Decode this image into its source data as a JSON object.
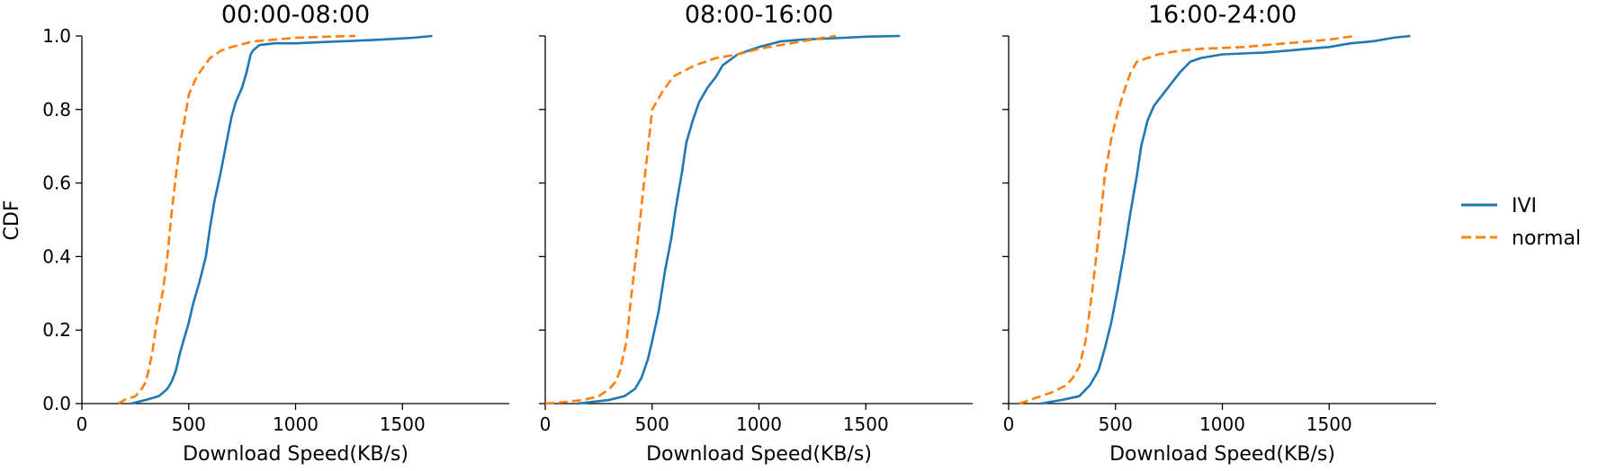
{
  "figure": {
    "ylabel": "CDF",
    "xlabel": "Download Speed(KB/s)"
  },
  "legend": {
    "placement": "right",
    "entries": [
      {
        "label": "IVI",
        "color": "#1f77b4",
        "style": "solid"
      },
      {
        "label": "normal",
        "color": "#ff7f0e",
        "style": "dashed"
      }
    ]
  },
  "chart_data": [
    {
      "type": "line",
      "title": "00:00-08:00",
      "xlabel": "Download Speed(KB/s)",
      "ylabel": "CDF",
      "xlim": [
        0,
        2000
      ],
      "ylim": [
        0,
        1
      ],
      "xticks": [
        "0",
        "500",
        "1000",
        "1500"
      ],
      "yticks": [
        "0.0",
        "0.2",
        "0.4",
        "0.6",
        "0.8",
        "1.0"
      ],
      "grid": false,
      "series": [
        {
          "name": "IVI",
          "color": "#1f77b4",
          "style": "solid",
          "x": [
            230,
            300,
            360,
            400,
            420,
            440,
            460,
            480,
            500,
            520,
            550,
            580,
            600,
            620,
            650,
            680,
            700,
            720,
            750,
            770,
            790,
            800,
            830,
            900,
            1000,
            1200,
            1400,
            1550,
            1640
          ],
          "y": [
            0.0,
            0.01,
            0.02,
            0.04,
            0.06,
            0.09,
            0.14,
            0.18,
            0.22,
            0.27,
            0.33,
            0.4,
            0.48,
            0.55,
            0.63,
            0.72,
            0.78,
            0.82,
            0.86,
            0.9,
            0.95,
            0.96,
            0.975,
            0.98,
            0.98,
            0.985,
            0.99,
            0.995,
            1.0
          ]
        },
        {
          "name": "normal",
          "color": "#ff7f0e",
          "style": "dashed",
          "x": [
            170,
            200,
            250,
            280,
            300,
            330,
            350,
            380,
            400,
            420,
            440,
            460,
            480,
            500,
            530,
            550,
            600,
            650,
            700,
            800,
            900,
            1000,
            1100,
            1200,
            1280
          ],
          "y": [
            0.0,
            0.01,
            0.02,
            0.04,
            0.06,
            0.14,
            0.22,
            0.31,
            0.4,
            0.52,
            0.62,
            0.71,
            0.77,
            0.84,
            0.88,
            0.9,
            0.94,
            0.96,
            0.97,
            0.985,
            0.99,
            0.995,
            0.997,
            0.999,
            1.0
          ]
        }
      ]
    },
    {
      "type": "line",
      "title": "08:00-16:00",
      "xlabel": "Download Speed(KB/s)",
      "ylabel": "CDF",
      "xlim": [
        0,
        2000
      ],
      "ylim": [
        0,
        1
      ],
      "xticks": [
        "0",
        "500",
        "1000",
        "1500"
      ],
      "yticks": [
        "0.0",
        "0.2",
        "0.4",
        "0.6",
        "0.8",
        "1.0"
      ],
      "grid": false,
      "series": [
        {
          "name": "IVI",
          "color": "#1f77b4",
          "style": "solid",
          "x": [
            150,
            300,
            370,
            420,
            450,
            480,
            500,
            530,
            560,
            590,
            610,
            640,
            660,
            690,
            720,
            760,
            800,
            830,
            900,
            1000,
            1100,
            1200,
            1400,
            1500,
            1660
          ],
          "y": [
            0.0,
            0.01,
            0.02,
            0.04,
            0.07,
            0.12,
            0.17,
            0.25,
            0.36,
            0.45,
            0.53,
            0.63,
            0.71,
            0.77,
            0.82,
            0.86,
            0.89,
            0.92,
            0.95,
            0.97,
            0.985,
            0.99,
            0.995,
            0.998,
            1.0
          ]
        },
        {
          "name": "normal",
          "color": "#ff7f0e",
          "style": "dashed",
          "x": [
            0,
            100,
            180,
            250,
            300,
            330,
            350,
            380,
            400,
            420,
            440,
            460,
            480,
            500,
            550,
            600,
            700,
            800,
            900,
            1000,
            1100,
            1200,
            1300,
            1360
          ],
          "y": [
            0.0,
            0.005,
            0.01,
            0.02,
            0.04,
            0.06,
            0.09,
            0.17,
            0.28,
            0.38,
            0.48,
            0.59,
            0.69,
            0.8,
            0.85,
            0.89,
            0.92,
            0.94,
            0.95,
            0.965,
            0.975,
            0.985,
            0.995,
            1.0
          ]
        }
      ]
    },
    {
      "type": "line",
      "title": "16:00-24:00",
      "xlabel": "Download Speed(KB/s)",
      "ylabel": "CDF",
      "xlim": [
        0,
        2000
      ],
      "ylim": [
        0,
        1
      ],
      "xticks": [
        "0",
        "500",
        "1000",
        "1500"
      ],
      "yticks": [
        "0.0",
        "0.2",
        "0.4",
        "0.6",
        "0.8",
        "1.0"
      ],
      "grid": false,
      "series": [
        {
          "name": "IVI",
          "color": "#1f77b4",
          "style": "solid",
          "x": [
            150,
            250,
            330,
            380,
            420,
            450,
            480,
            510,
            540,
            570,
            600,
            620,
            650,
            680,
            720,
            760,
            800,
            850,
            900,
            1000,
            1200,
            1300,
            1400,
            1500,
            1600,
            1700,
            1800,
            1880
          ],
          "y": [
            0.0,
            0.01,
            0.02,
            0.05,
            0.09,
            0.15,
            0.22,
            0.31,
            0.41,
            0.52,
            0.62,
            0.7,
            0.77,
            0.81,
            0.84,
            0.87,
            0.9,
            0.93,
            0.94,
            0.95,
            0.955,
            0.96,
            0.965,
            0.97,
            0.98,
            0.985,
            0.995,
            1.0
          ]
        },
        {
          "name": "normal",
          "color": "#ff7f0e",
          "style": "dashed",
          "x": [
            50,
            100,
            150,
            200,
            270,
            300,
            330,
            360,
            390,
            420,
            450,
            480,
            510,
            540,
            570,
            600,
            650,
            700,
            800,
            900,
            1100,
            1200,
            1300,
            1400,
            1500,
            1620
          ],
          "y": [
            0.0,
            0.01,
            0.02,
            0.03,
            0.05,
            0.07,
            0.1,
            0.17,
            0.3,
            0.45,
            0.62,
            0.72,
            0.79,
            0.85,
            0.9,
            0.93,
            0.94,
            0.95,
            0.96,
            0.965,
            0.97,
            0.975,
            0.98,
            0.985,
            0.99,
            1.0
          ]
        }
      ]
    }
  ]
}
